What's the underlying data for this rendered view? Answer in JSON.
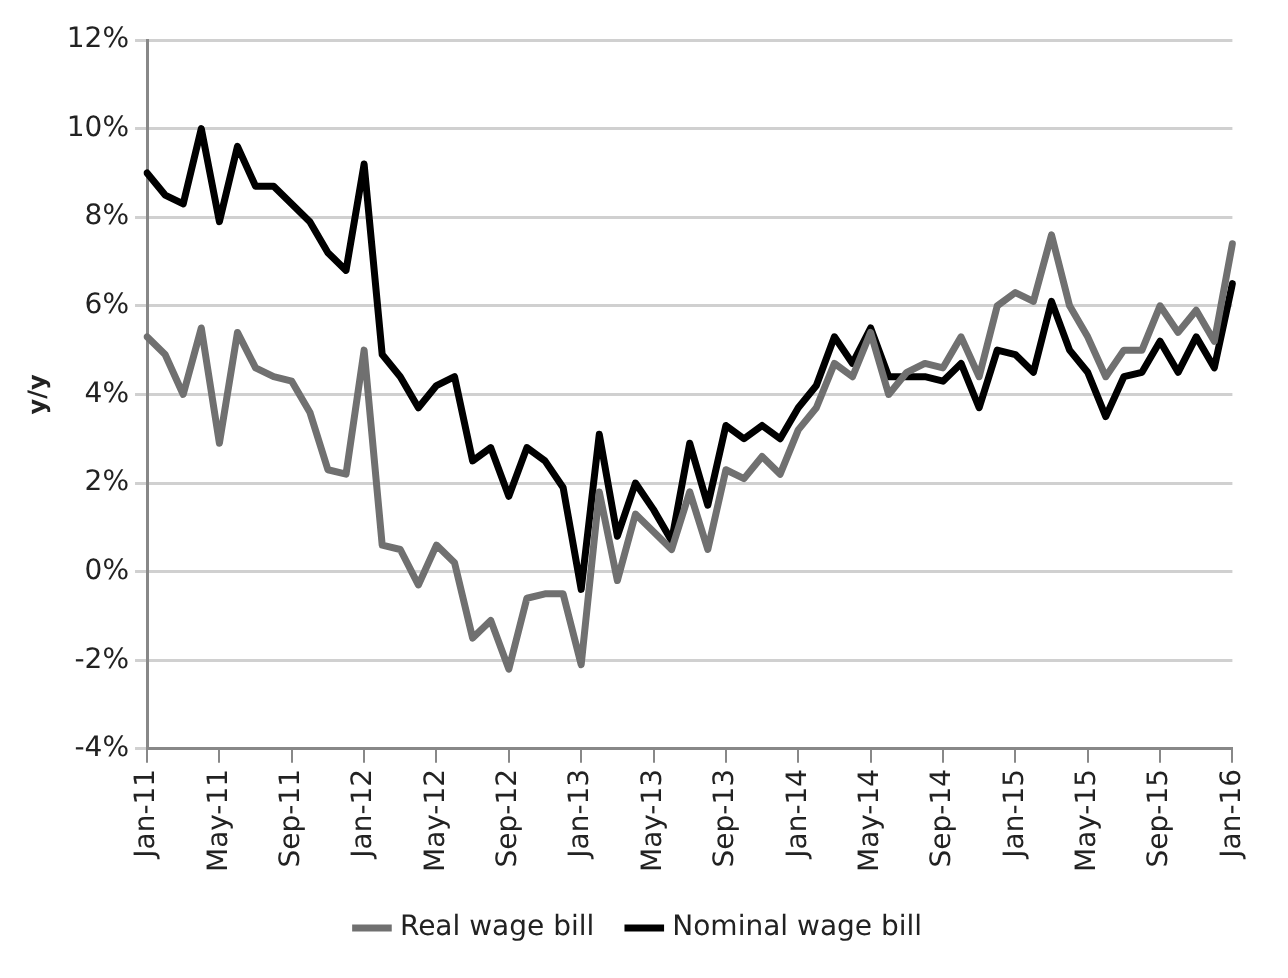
{
  "chart_data": {
    "type": "line",
    "ylabel": "y/y",
    "categories": [
      "Jan-11",
      null,
      null,
      null,
      "May-11",
      null,
      null,
      null,
      "Sep-11",
      null,
      null,
      null,
      "Jan-12",
      null,
      null,
      null,
      "May-12",
      null,
      null,
      null,
      "Sep-12",
      null,
      null,
      null,
      "Jan-13",
      null,
      null,
      null,
      "May-13",
      null,
      null,
      null,
      "Sep-13",
      null,
      null,
      null,
      "Jan-14",
      null,
      null,
      null,
      "May-14",
      null,
      null,
      null,
      "Sep-14",
      null,
      null,
      null,
      "Jan-15",
      null,
      null,
      null,
      "May-15",
      null,
      null,
      null,
      "Sep-15",
      null,
      null,
      null,
      "Jan-16"
    ],
    "series": [
      {
        "name": "Real wage bill",
        "color": "#707070",
        "values": [
          5.3,
          4.9,
          4.0,
          5.5,
          2.9,
          5.4,
          4.6,
          4.4,
          4.3,
          3.6,
          2.3,
          2.2,
          5.0,
          0.6,
          0.5,
          -0.3,
          0.6,
          0.2,
          -1.5,
          -1.1,
          -2.2,
          -0.6,
          -0.5,
          -0.5,
          -2.1,
          1.8,
          -0.2,
          1.3,
          0.9,
          0.5,
          1.8,
          0.5,
          2.3,
          2.1,
          2.6,
          2.2,
          3.2,
          3.7,
          4.7,
          4.4,
          5.4,
          4.0,
          4.5,
          4.7,
          4.6,
          5.3,
          4.4,
          6.0,
          6.3,
          6.1,
          7.6,
          6.0,
          5.3,
          4.4,
          5.0,
          5.0,
          6.0,
          5.4,
          5.9,
          5.2,
          7.4
        ]
      },
      {
        "name": "Nominal wage bill",
        "color": "#000000",
        "values": [
          9.0,
          8.5,
          8.3,
          10.0,
          7.9,
          9.6,
          8.7,
          8.7,
          8.3,
          7.9,
          7.2,
          6.8,
          9.2,
          4.9,
          4.4,
          3.7,
          4.2,
          4.4,
          2.5,
          2.8,
          1.7,
          2.8,
          2.5,
          1.9,
          -0.4,
          3.1,
          0.8,
          2.0,
          1.4,
          0.7,
          2.9,
          1.5,
          3.3,
          3.0,
          3.3,
          3.0,
          3.7,
          4.2,
          5.3,
          4.7,
          5.5,
          4.4,
          4.4,
          4.4,
          4.3,
          4.7,
          3.7,
          5.0,
          4.9,
          4.5,
          6.1,
          5.0,
          4.5,
          3.5,
          4.4,
          4.5,
          5.2,
          4.5,
          5.3,
          4.6,
          6.5
        ]
      }
    ],
    "ylim": [
      -4,
      12
    ],
    "yticks": [
      {
        "value": -4,
        "label": "-4%"
      },
      {
        "value": -2,
        "label": "-2%"
      },
      {
        "value": 0,
        "label": "0%"
      },
      {
        "value": 2,
        "label": "2%"
      },
      {
        "value": 4,
        "label": "4%"
      },
      {
        "value": 6,
        "label": "6%"
      },
      {
        "value": 8,
        "label": "8%"
      },
      {
        "value": 10,
        "label": "10%"
      },
      {
        "value": 12,
        "label": "12%"
      }
    ],
    "grid": "y",
    "legend": "bottom",
    "marker": "none",
    "line_style": "solid"
  }
}
